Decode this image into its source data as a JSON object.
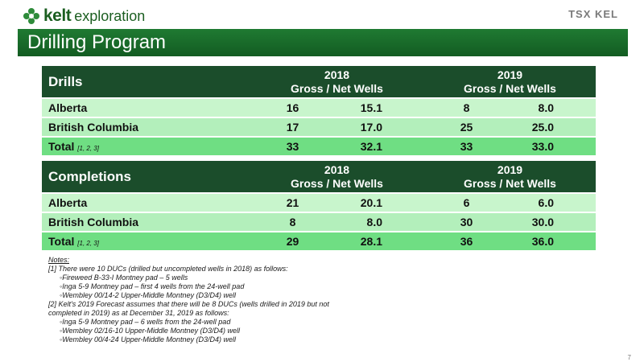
{
  "header": {
    "logo_word": "kelt",
    "logo_sub": "exploration",
    "ticker": "TSX KEL",
    "title": "Drilling Program"
  },
  "tables": {
    "drills": {
      "section": "Drills",
      "years": [
        {
          "year": "2018",
          "sub": "Gross / Net Wells"
        },
        {
          "year": "2019",
          "sub": "Gross / Net Wells"
        }
      ],
      "rows": [
        {
          "name": "Alberta",
          "cite": "",
          "v": [
            "16",
            "15.1",
            "8",
            "8.0"
          ]
        },
        {
          "name": "British Columbia",
          "cite": "",
          "v": [
            "17",
            "17.0",
            "25",
            "25.0"
          ]
        },
        {
          "name": "Total",
          "cite": "[1, 2, 3]",
          "v": [
            "33",
            "32.1",
            "33",
            "33.0"
          ]
        }
      ]
    },
    "completions": {
      "section": "Completions",
      "years": [
        {
          "year": "2018",
          "sub": "Gross / Net Wells"
        },
        {
          "year": "2019",
          "sub": "Gross / Net Wells"
        }
      ],
      "rows": [
        {
          "name": "Alberta",
          "cite": "",
          "v": [
            "21",
            "20.1",
            "6",
            "6.0"
          ]
        },
        {
          "name": "British Columbia",
          "cite": "",
          "v": [
            "8",
            "8.0",
            "30",
            "30.0"
          ]
        },
        {
          "name": "Total",
          "cite": "[1, 2, 3]",
          "v": [
            "29",
            "28.1",
            "36",
            "36.0"
          ]
        }
      ]
    }
  },
  "notes": {
    "title": "Notes:",
    "lines": [
      {
        "bullet": false,
        "text": "[1] There were 10 DUCs (drilled but uncompleted wells in 2018) as follows:"
      },
      {
        "bullet": true,
        "text": "Fireweed B-33-I Montney pad – 5 wells"
      },
      {
        "bullet": true,
        "text": "Inga 5-9  Montney pad – first 4 wells from the 24-well pad"
      },
      {
        "bullet": true,
        "text": "Wembley 00/14-2 Upper-Middle Montney (D3/D4) well"
      },
      {
        "bullet": false,
        "text": "[2] Kelt's 2019 Forecast assumes that there will be 8 DUCs (wells drilled in 2019 but not"
      },
      {
        "bullet": false,
        "text": "completed in 2019) as at December 31, 2019 as follows:"
      },
      {
        "bullet": true,
        "text": "Inga 5-9 Montney pad – 6 wells from the 24-well pad"
      },
      {
        "bullet": true,
        "text": "Wembley 02/16-10 Upper-Middle Montney (D3/D4) well"
      },
      {
        "bullet": true,
        "text": "Wembley 00/4-24 Upper-Middle Montney (D3/D4) well"
      }
    ]
  },
  "page_number": "7",
  "colors": {
    "title_bar": "#1b6b2e",
    "table_header": "#1b4d2b",
    "row_light": "#c8f5cc",
    "total_row": "#6fde83"
  }
}
